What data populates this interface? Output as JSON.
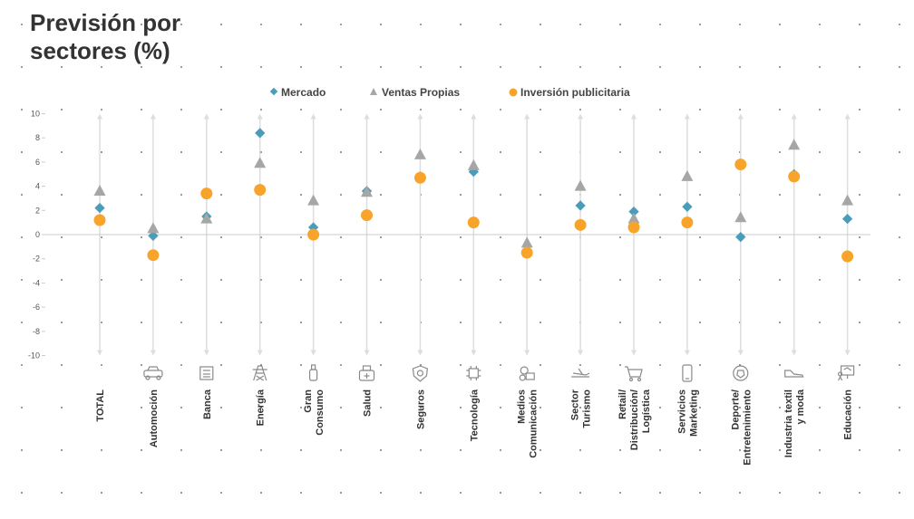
{
  "title": "Previsión por sectores (%)",
  "colors": {
    "mercado": "#4a9cb8",
    "ventas": "#a6a6a6",
    "inversion": "#f8a42a",
    "range_line": "#dddddd",
    "zero_line": "#cccccc",
    "icon": "#8a8a8a"
  },
  "legend": {
    "mercado": "Mercado",
    "ventas": "Ventas Propias",
    "inversion": "Inversión publicitaria"
  },
  "chart_data": {
    "type": "scatter",
    "ylim": [
      -10,
      10
    ],
    "yticks": [
      "10",
      "8",
      "6",
      "4",
      "2",
      "0",
      "-2",
      "-4",
      "-6",
      "-8",
      "-10"
    ],
    "categories": [
      [
        "TOTAL"
      ],
      [
        "Automoción"
      ],
      [
        "Banca"
      ],
      [
        "Energía"
      ],
      [
        "Gran",
        "Consumo"
      ],
      [
        "Salud"
      ],
      [
        "Seguros"
      ],
      [
        "Tecnología"
      ],
      [
        "Medios",
        "Comunicación"
      ],
      [
        "Sector",
        "Turismo"
      ],
      [
        "Retail/",
        "Distribución/",
        "Logística"
      ],
      [
        "Servicios",
        "Marketing"
      ],
      [
        "Deporte/",
        "Entretenimiento"
      ],
      [
        "Industria textil",
        "y moda"
      ],
      [
        "Educación"
      ]
    ],
    "icons": [
      "",
      "car-icon",
      "bank-icon",
      "power-tower-icon",
      "bottle-icon",
      "medicine-icon",
      "shield-icon",
      "chip-icon",
      "media-icon",
      "plane-icon",
      "cart-icon",
      "phone-icon",
      "sports-ball-icon",
      "shoe-icon",
      "presentation-icon"
    ],
    "series": [
      {
        "name": "Mercado",
        "key": "mercado",
        "marker": "diamond",
        "values": [
          2.2,
          -0.1,
          1.5,
          8.4,
          0.6,
          3.6,
          4.8,
          5.2,
          -1.3,
          2.4,
          1.9,
          2.3,
          -0.2,
          5.0,
          1.3
        ]
      },
      {
        "name": "Ventas Propias",
        "key": "ventas",
        "marker": "triangle",
        "values": [
          3.6,
          0.5,
          1.3,
          5.9,
          2.8,
          3.5,
          6.6,
          5.7,
          -0.7,
          4.0,
          1.3,
          4.8,
          1.4,
          7.4,
          2.8
        ]
      },
      {
        "name": "Inversión publicitaria",
        "key": "inversion",
        "marker": "circle",
        "values": [
          1.2,
          -1.7,
          3.4,
          3.7,
          0.0,
          1.6,
          4.7,
          1.0,
          -1.5,
          0.8,
          0.6,
          1.0,
          5.8,
          4.8,
          -1.8
        ]
      }
    ]
  }
}
